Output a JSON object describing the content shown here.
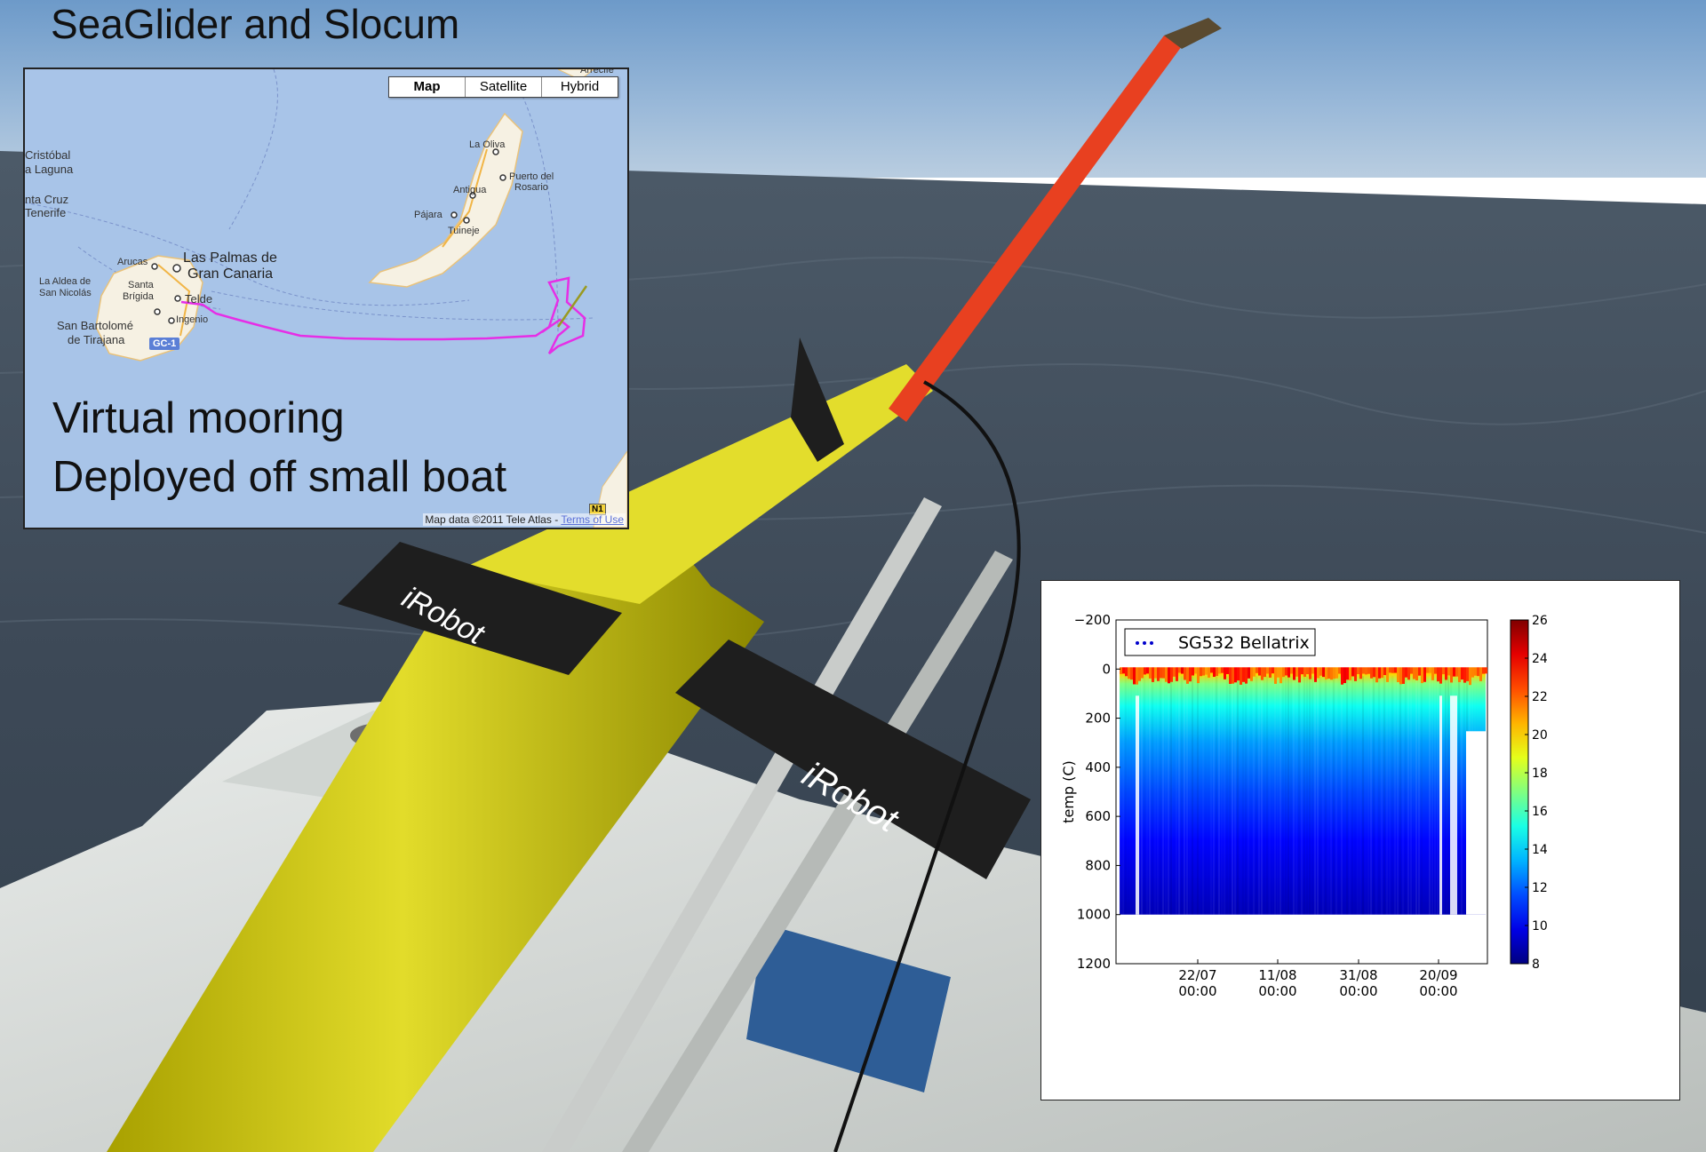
{
  "slide": {
    "title": "SeaGlider and Slocum"
  },
  "map": {
    "buttons": [
      "Map",
      "Satellite",
      "Hybrid"
    ],
    "places": {
      "cristobal": "Cristóbal",
      "laguna": "a Laguna",
      "santacruz": "nta Cruz",
      "tenerife": "Tenerife",
      "arucas": "Arucas",
      "laspalmas1": "Las Palmas de",
      "laspalmas2": "Gran Canaria",
      "aldea1": "La Aldea de",
      "aldea2": "San Nicolás",
      "santa1": "Santa",
      "santa2": "Brígida",
      "telde": "Telde",
      "ingenio": "Ingenio",
      "sanbart1": "San Bartolomé",
      "sanbart2": "de Tirajana",
      "laoliva": "La Oliva",
      "puerto1": "Puerto del",
      "puerto2": "Rosario",
      "antigua": "Antigua",
      "pajara": "Pájara",
      "tuineje": "Tuineje",
      "arrecife": "Arrecife"
    },
    "road_badge": "GC-1",
    "n1_badge": "N1",
    "caption_line1": "Virtual mooring",
    "caption_line2": "Deployed off small boat",
    "credit": "Map data ©2011 Tele Atlas - ",
    "credit_link": "Terms of Use",
    "track_color": "#e62ee6"
  },
  "chart_data": {
    "type": "heatmap",
    "legend": "SG532 Bellatrix",
    "ylabel": "temp (C)",
    "xlabel": "",
    "ylim": [
      1200,
      -200
    ],
    "y_ticks": [
      "−200",
      "0",
      "200",
      "400",
      "600",
      "800",
      "1000",
      "1200"
    ],
    "x_ticks": [
      {
        "date": "22/07",
        "time": "00:00"
      },
      {
        "date": "11/08",
        "time": "00:00"
      },
      {
        "date": "31/08",
        "time": "00:00"
      },
      {
        "date": "20/09",
        "time": "00:00"
      }
    ],
    "colorbar_range": [
      8,
      26
    ],
    "colorbar_ticks": [
      "26",
      "24",
      "22",
      "20",
      "18",
      "16",
      "14",
      "12",
      "10",
      "8"
    ],
    "profile": [
      {
        "depth": 0,
        "temp": 22
      },
      {
        "depth": 20,
        "temp": 20
      },
      {
        "depth": 60,
        "temp": 17
      },
      {
        "depth": 150,
        "temp": 15
      },
      {
        "depth": 300,
        "temp": 13
      },
      {
        "depth": 500,
        "temp": 11.5
      },
      {
        "depth": 700,
        "temp": 10.3
      },
      {
        "depth": 1000,
        "temp": 9
      }
    ],
    "max_depth": 1000
  }
}
